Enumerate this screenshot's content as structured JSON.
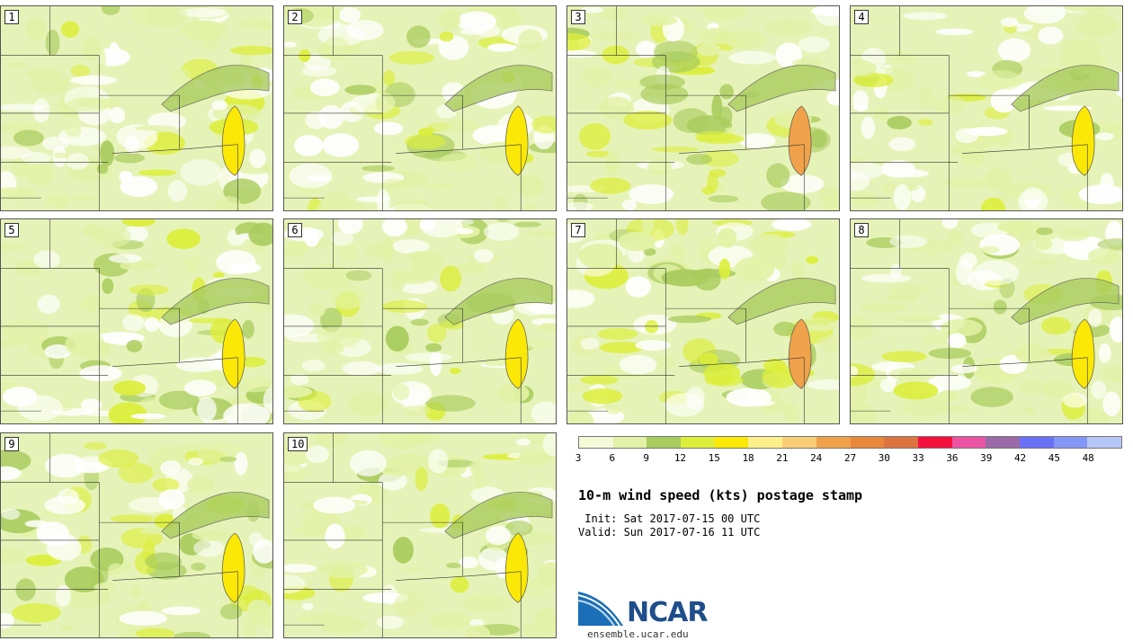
{
  "panels": [
    {
      "label": "1",
      "intensity": 0.35
    },
    {
      "label": "2",
      "intensity": 0.3
    },
    {
      "label": "3",
      "intensity": 0.7
    },
    {
      "label": "4",
      "intensity": 0.25
    },
    {
      "label": "5",
      "intensity": 0.4
    },
    {
      "label": "6",
      "intensity": 0.35
    },
    {
      "label": "7",
      "intensity": 0.7
    },
    {
      "label": "8",
      "intensity": 0.3
    },
    {
      "label": "9",
      "intensity": 0.5
    },
    {
      "label": "10",
      "intensity": 0.45
    }
  ],
  "colorbar": {
    "ticks": [
      "3",
      "6",
      "9",
      "12",
      "15",
      "18",
      "21",
      "24",
      "27",
      "30",
      "33",
      "36",
      "39",
      "42",
      "45",
      "48"
    ],
    "colors": [
      "#f4f9d8",
      "#e2f2a6",
      "#a9cc5e",
      "#dcee3a",
      "#fbe806",
      "#fdef8a",
      "#f9cd78",
      "#f0a24b",
      "#e9873a",
      "#dd7440",
      "#f4103c",
      "#ea54a3",
      "#9a6aa8",
      "#6a70f6",
      "#8397f6",
      "#b7c6f8"
    ]
  },
  "title": "10-m wind speed (kts) postage stamp",
  "init": " Init: Sat 2017-07-15 00 UTC",
  "valid": "Valid: Sun 2017-07-16 11 UTC",
  "logo": {
    "name": "NCAR",
    "url": "ensemble.ucar.edu"
  }
}
